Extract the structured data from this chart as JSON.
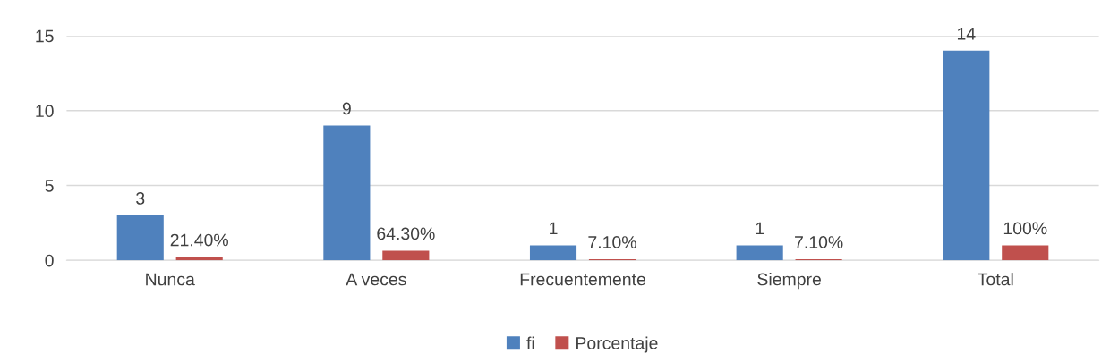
{
  "chart_data": {
    "type": "bar",
    "categories": [
      "Nunca",
      "A veces",
      "Frecuentemente",
      "Siempre",
      "Total"
    ],
    "series": [
      {
        "name": "fi",
        "color": "#4f81bd",
        "values": [
          3,
          9,
          1,
          1,
          14
        ],
        "value_labels": [
          "3",
          "9",
          "1",
          "1",
          "14"
        ]
      },
      {
        "name": "Porcentaje",
        "color": "#c0504d",
        "values": [
          0.214,
          0.643,
          0.071,
          0.071,
          1
        ],
        "value_labels": [
          "21.40%",
          "64.30%",
          "7.10%",
          "7.10%",
          "100%"
        ]
      }
    ],
    "ylim": [
      0,
      15
    ],
    "yticks": [
      0,
      5,
      10,
      15
    ],
    "grid": "y",
    "legend": "bottom"
  }
}
